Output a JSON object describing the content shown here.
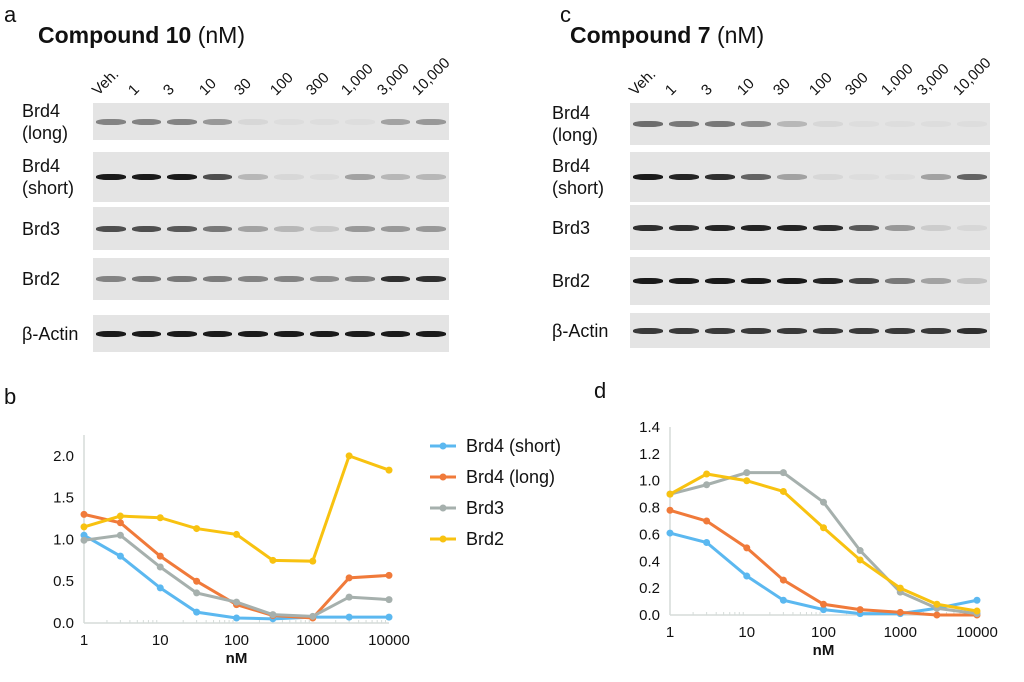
{
  "panels": {
    "a": "a",
    "b": "b",
    "c": "c",
    "d": "d"
  },
  "blots": [
    {
      "compound_bold": "Compound 10",
      "unit": "(nM)",
      "lanes": [
        "Veh.",
        "1",
        "3",
        "10",
        "30",
        "100",
        "300",
        "1,000",
        "3,000",
        "10,000"
      ],
      "rows": [
        {
          "label": "Brd4\n(long)",
          "label1": "Brd4",
          "label2": "(long)",
          "intensity": [
            0.45,
            0.45,
            0.45,
            0.35,
            0.05,
            0.02,
            0.02,
            0.02,
            0.3,
            0.35
          ]
        },
        {
          "label1": "Brd4",
          "label2": "(short)",
          "intensity": [
            0.95,
            0.95,
            0.95,
            0.7,
            0.2,
            0.05,
            0.03,
            0.3,
            0.2,
            0.2
          ]
        },
        {
          "label1": "Brd3",
          "label2": "",
          "intensity": [
            0.7,
            0.7,
            0.65,
            0.5,
            0.3,
            0.2,
            0.12,
            0.35,
            0.35,
            0.35
          ]
        },
        {
          "label1": "Brd2",
          "label2": "",
          "intensity": [
            0.45,
            0.5,
            0.5,
            0.48,
            0.45,
            0.45,
            0.4,
            0.45,
            0.85,
            0.85
          ]
        },
        {
          "label1": "β-Actin",
          "label2": "",
          "intensity": [
            0.95,
            0.95,
            0.95,
            0.95,
            0.95,
            0.95,
            0.95,
            0.95,
            0.95,
            0.95
          ]
        }
      ]
    },
    {
      "compound_bold": "Compound 7",
      "unit": "(nM)",
      "lanes": [
        "Veh.",
        "1",
        "3",
        "10",
        "30",
        "100",
        "300",
        "1,000",
        "3,000",
        "10,000"
      ],
      "rows": [
        {
          "label1": "Brd4",
          "label2": "(long)",
          "intensity": [
            0.55,
            0.5,
            0.5,
            0.4,
            0.2,
            0.05,
            0.02,
            0.02,
            0.02,
            0.02
          ]
        },
        {
          "label1": "Brd4",
          "label2": "(short)",
          "intensity": [
            0.95,
            0.9,
            0.85,
            0.6,
            0.3,
            0.05,
            0.02,
            0.02,
            0.3,
            0.6
          ]
        },
        {
          "label1": "Brd3",
          "label2": "",
          "intensity": [
            0.85,
            0.85,
            0.9,
            0.9,
            0.9,
            0.85,
            0.65,
            0.35,
            0.1,
            0.05
          ]
        },
        {
          "label1": "Brd2",
          "label2": "",
          "intensity": [
            0.95,
            0.95,
            0.95,
            0.95,
            0.95,
            0.9,
            0.75,
            0.5,
            0.3,
            0.15
          ]
        },
        {
          "label1": "β-Actin",
          "label2": "",
          "intensity": [
            0.8,
            0.8,
            0.8,
            0.8,
            0.8,
            0.8,
            0.8,
            0.8,
            0.8,
            0.85
          ]
        }
      ]
    }
  ],
  "chart_data": [
    {
      "type": "line",
      "panel": "b",
      "xscale": "log",
      "xlabel": "nM",
      "ylabel": "",
      "x": [
        1,
        3,
        10,
        30,
        100,
        300,
        1000,
        3000,
        10000
      ],
      "xticks": [
        "1",
        "10",
        "100",
        "1000",
        "10000"
      ],
      "yticks": [
        "0.0",
        "0.5",
        "1.0",
        "1.5",
        "2.0"
      ],
      "ylim": [
        0,
        2.25
      ],
      "legend": "right",
      "series": [
        {
          "name": "Brd4 (short)",
          "color": "#5bb8f0",
          "values": [
            1.05,
            0.8,
            0.42,
            0.13,
            0.06,
            0.05,
            0.07,
            0.07,
            0.07
          ]
        },
        {
          "name": "Brd4 (long)",
          "color": "#f07a3a",
          "values": [
            1.3,
            1.2,
            0.8,
            0.5,
            0.22,
            0.09,
            0.06,
            0.54,
            0.57
          ]
        },
        {
          "name": "Brd3",
          "color": "#a6b0ad",
          "values": [
            0.99,
            1.05,
            0.67,
            0.36,
            0.25,
            0.1,
            0.08,
            0.31,
            0.28
          ]
        },
        {
          "name": "Brd2",
          "color": "#f8c210",
          "values": [
            1.15,
            1.28,
            1.26,
            1.13,
            1.06,
            0.75,
            0.74,
            2.0,
            1.83
          ]
        }
      ]
    },
    {
      "type": "line",
      "panel": "d",
      "xscale": "log",
      "xlabel": "nM",
      "ylabel": "",
      "x": [
        1,
        3,
        10,
        30,
        100,
        300,
        1000,
        3000,
        10000
      ],
      "xticks": [
        "1",
        "10",
        "100",
        "1000",
        "10000"
      ],
      "yticks": [
        "0.0",
        "0.2",
        "0.4",
        "0.6",
        "0.8",
        "1.0",
        "1.2",
        "1.4"
      ],
      "ylim": [
        0,
        1.4
      ],
      "series": [
        {
          "color": "#5bb8f0",
          "values": [
            0.61,
            0.54,
            0.29,
            0.11,
            0.04,
            0.01,
            0.01,
            0.05,
            0.11
          ]
        },
        {
          "color": "#f07a3a",
          "values": [
            0.78,
            0.7,
            0.5,
            0.26,
            0.08,
            0.04,
            0.02,
            0.0,
            0.0
          ]
        },
        {
          "color": "#a6b0ad",
          "values": [
            0.9,
            0.97,
            1.06,
            1.06,
            0.84,
            0.48,
            0.17,
            0.05,
            0.01
          ]
        },
        {
          "color": "#f8c210",
          "values": [
            0.9,
            1.05,
            1.0,
            0.92,
            0.65,
            0.41,
            0.2,
            0.08,
            0.03
          ]
        }
      ]
    }
  ]
}
